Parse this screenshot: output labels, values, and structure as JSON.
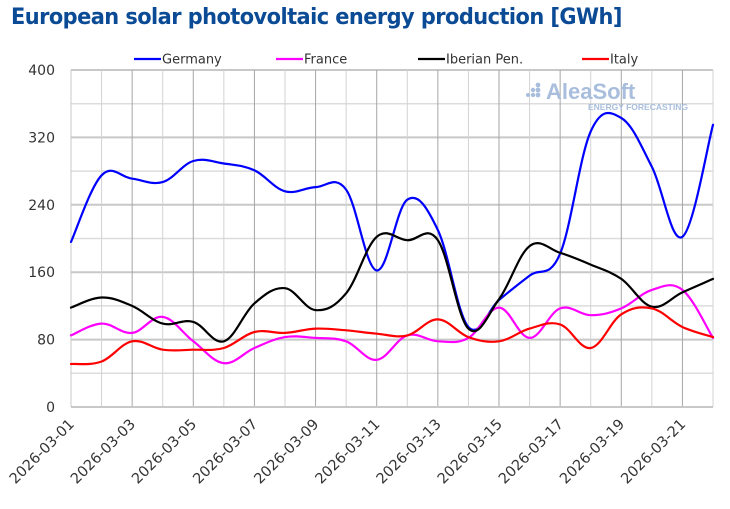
{
  "chart_data": {
    "type": "line",
    "title": "European solar photovoltaic energy production [GWh]",
    "xlabel": "",
    "ylabel": "",
    "ylim": [
      0,
      400
    ],
    "yticks": [
      0,
      80,
      160,
      240,
      320,
      400
    ],
    "ytick_labels": [
      "0",
      "80",
      "160",
      "240",
      "320",
      "400"
    ],
    "y_minor_grid_step": 40,
    "grid": true,
    "legend_placement": "top",
    "watermark": {
      "main": "AleaSoft",
      "sub": "ENERGY FORECASTING"
    },
    "x": [
      "2026-03-01",
      "2026-03-02",
      "2026-03-03",
      "2026-03-04",
      "2026-03-05",
      "2026-03-06",
      "2026-03-07",
      "2026-03-08",
      "2026-03-09",
      "2026-03-10",
      "2026-03-11",
      "2026-03-12",
      "2026-03-13",
      "2026-03-14",
      "2026-03-15",
      "2026-03-16",
      "2026-03-17",
      "2026-03-18",
      "2026-03-19",
      "2026-03-20",
      "2026-03-21",
      "2026-03-22"
    ],
    "xtick_labels": [
      "2026-03-01",
      "2026-03-03",
      "2026-03-05",
      "2026-03-07",
      "2026-03-09",
      "2026-03-11",
      "2026-03-13",
      "2026-03-15",
      "2026-03-17",
      "2026-03-19",
      "2026-03-21"
    ],
    "series": [
      {
        "name": "Germany",
        "color": "#0000ff",
        "values": [
          196,
          275,
          271,
          267,
          292,
          289,
          281,
          256,
          261,
          258,
          162,
          246,
          210,
          95,
          127,
          156,
          182,
          327,
          343,
          285,
          202,
          335
        ]
      },
      {
        "name": "France",
        "color": "#ff00ff",
        "values": [
          85,
          99,
          88,
          107,
          78,
          52,
          70,
          83,
          82,
          78,
          56,
          85,
          78,
          82,
          118,
          82,
          117,
          109,
          117,
          139,
          139,
          82
        ]
      },
      {
        "name": "Iberian Pen.",
        "color": "#000000",
        "values": [
          118,
          130,
          120,
          99,
          101,
          78,
          123,
          141,
          115,
          135,
          202,
          198,
          198,
          93,
          128,
          191,
          183,
          169,
          152,
          119,
          136,
          152
        ]
      },
      {
        "name": "Italy",
        "color": "#ff0000",
        "values": [
          51,
          54,
          78,
          68,
          68,
          70,
          89,
          88,
          93,
          91,
          87,
          85,
          104,
          83,
          78,
          93,
          98,
          70,
          110,
          117,
          95,
          83
        ]
      }
    ]
  }
}
